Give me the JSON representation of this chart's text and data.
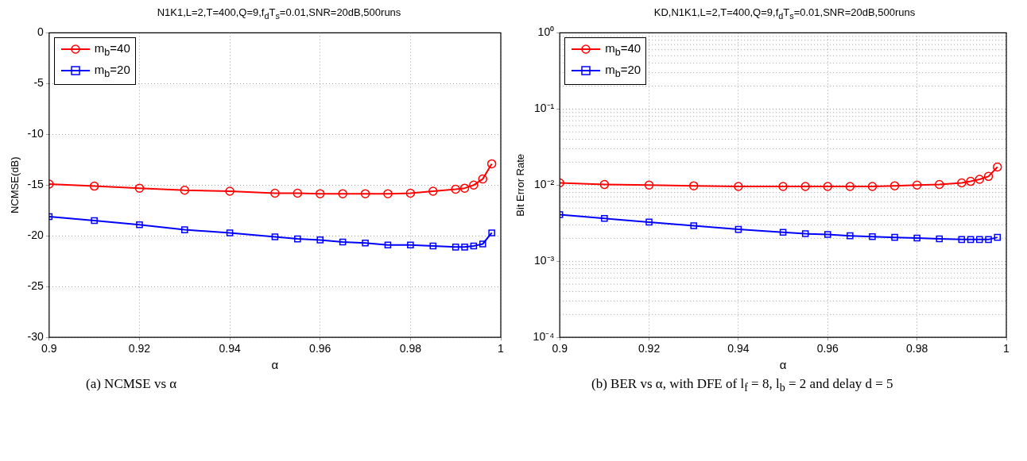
{
  "chart_data": [
    {
      "type": "line",
      "title": "N1K1,L=2,T=400,Q=9,f$_{d}$T$_{s}$=0.01,SNR=20dB,500runs",
      "xlabel": "α",
      "ylabel": "NCMSE(dB)",
      "x": [
        0.9,
        0.91,
        0.92,
        0.93,
        0.94,
        0.95,
        0.955,
        0.96,
        0.965,
        0.97,
        0.975,
        0.98,
        0.985,
        0.99,
        0.992,
        0.994,
        0.996,
        0.998
      ],
      "series": [
        {
          "name": "m$_{b}$=40",
          "color": "#ff0000",
          "marker": "circle",
          "values": [
            -14.9,
            -15.1,
            -15.3,
            -15.5,
            -15.6,
            -15.8,
            -15.8,
            -15.85,
            -15.85,
            -15.85,
            -15.85,
            -15.8,
            -15.6,
            -15.4,
            -15.3,
            -15.0,
            -14.4,
            -12.9
          ]
        },
        {
          "name": "m$_{b}$=20",
          "color": "#0000ff",
          "marker": "square",
          "values": [
            -18.1,
            -18.5,
            -18.9,
            -19.4,
            -19.7,
            -20.1,
            -20.3,
            -20.4,
            -20.6,
            -20.7,
            -20.9,
            -20.9,
            -21.0,
            -21.1,
            -21.1,
            -21.0,
            -20.8,
            -19.7
          ]
        }
      ],
      "xlim": [
        0.9,
        1
      ],
      "xticks": [
        0.9,
        0.92,
        0.94,
        0.96,
        0.98,
        1
      ],
      "ylim": [
        -30,
        0
      ],
      "yticks": [
        -30,
        -25,
        -20,
        -15,
        -10,
        -5,
        0
      ],
      "grid": true,
      "legend": "top left",
      "annotations": [
        "(a) NCMSE vs α"
      ]
    },
    {
      "type": "line",
      "title": "KD,N1K1,L=2,T=400,Q=9,f$_{d}$T$_{s}$=0.01,SNR=20dB,500runs",
      "xlabel": "α",
      "ylabel": "Bit Error Rate",
      "x": [
        0.9,
        0.91,
        0.92,
        0.93,
        0.94,
        0.95,
        0.955,
        0.96,
        0.965,
        0.97,
        0.975,
        0.98,
        0.985,
        0.99,
        0.992,
        0.994,
        0.996,
        0.998
      ],
      "series": [
        {
          "name": "m$_{b}$=40",
          "color": "#ff0000",
          "marker": "circle",
          "values": [
            0.0107,
            0.0102,
            0.01,
            0.0098,
            0.0096,
            0.0096,
            0.0096,
            0.0096,
            0.0096,
            0.0096,
            0.0098,
            0.01,
            0.0102,
            0.0107,
            0.0112,
            0.0119,
            0.013,
            0.0173
          ]
        },
        {
          "name": "m$_{b}$=20",
          "color": "#0000ff",
          "marker": "square",
          "values": [
            0.0041,
            0.00365,
            0.00327,
            0.00293,
            0.00262,
            0.0024,
            0.0023,
            0.00225,
            0.00216,
            0.0021,
            0.00206,
            0.00202,
            0.00197,
            0.00193,
            0.00193,
            0.00193,
            0.00193,
            0.00206
          ]
        }
      ],
      "xlim": [
        0.9,
        1
      ],
      "xticks": [
        0.9,
        0.92,
        0.94,
        0.96,
        0.98,
        1
      ],
      "ylim": [
        0.0001,
        1
      ],
      "yticks": [
        {
          "value": 0.0001,
          "label": "10⁻⁴"
        },
        {
          "value": 0.001,
          "label": "10⁻³"
        },
        {
          "value": 0.01,
          "label": "10⁻²"
        },
        {
          "value": 0.1,
          "label": "10⁻¹"
        },
        {
          "value": 1,
          "label": "10⁰"
        }
      ],
      "log": "y",
      "grid": true,
      "legend": "top left",
      "annotations": [
        "(b) BER vs α, with DFE of l$_{f}$ = 8, l$_{b}$ = 2 and delay d = 5"
      ]
    }
  ]
}
